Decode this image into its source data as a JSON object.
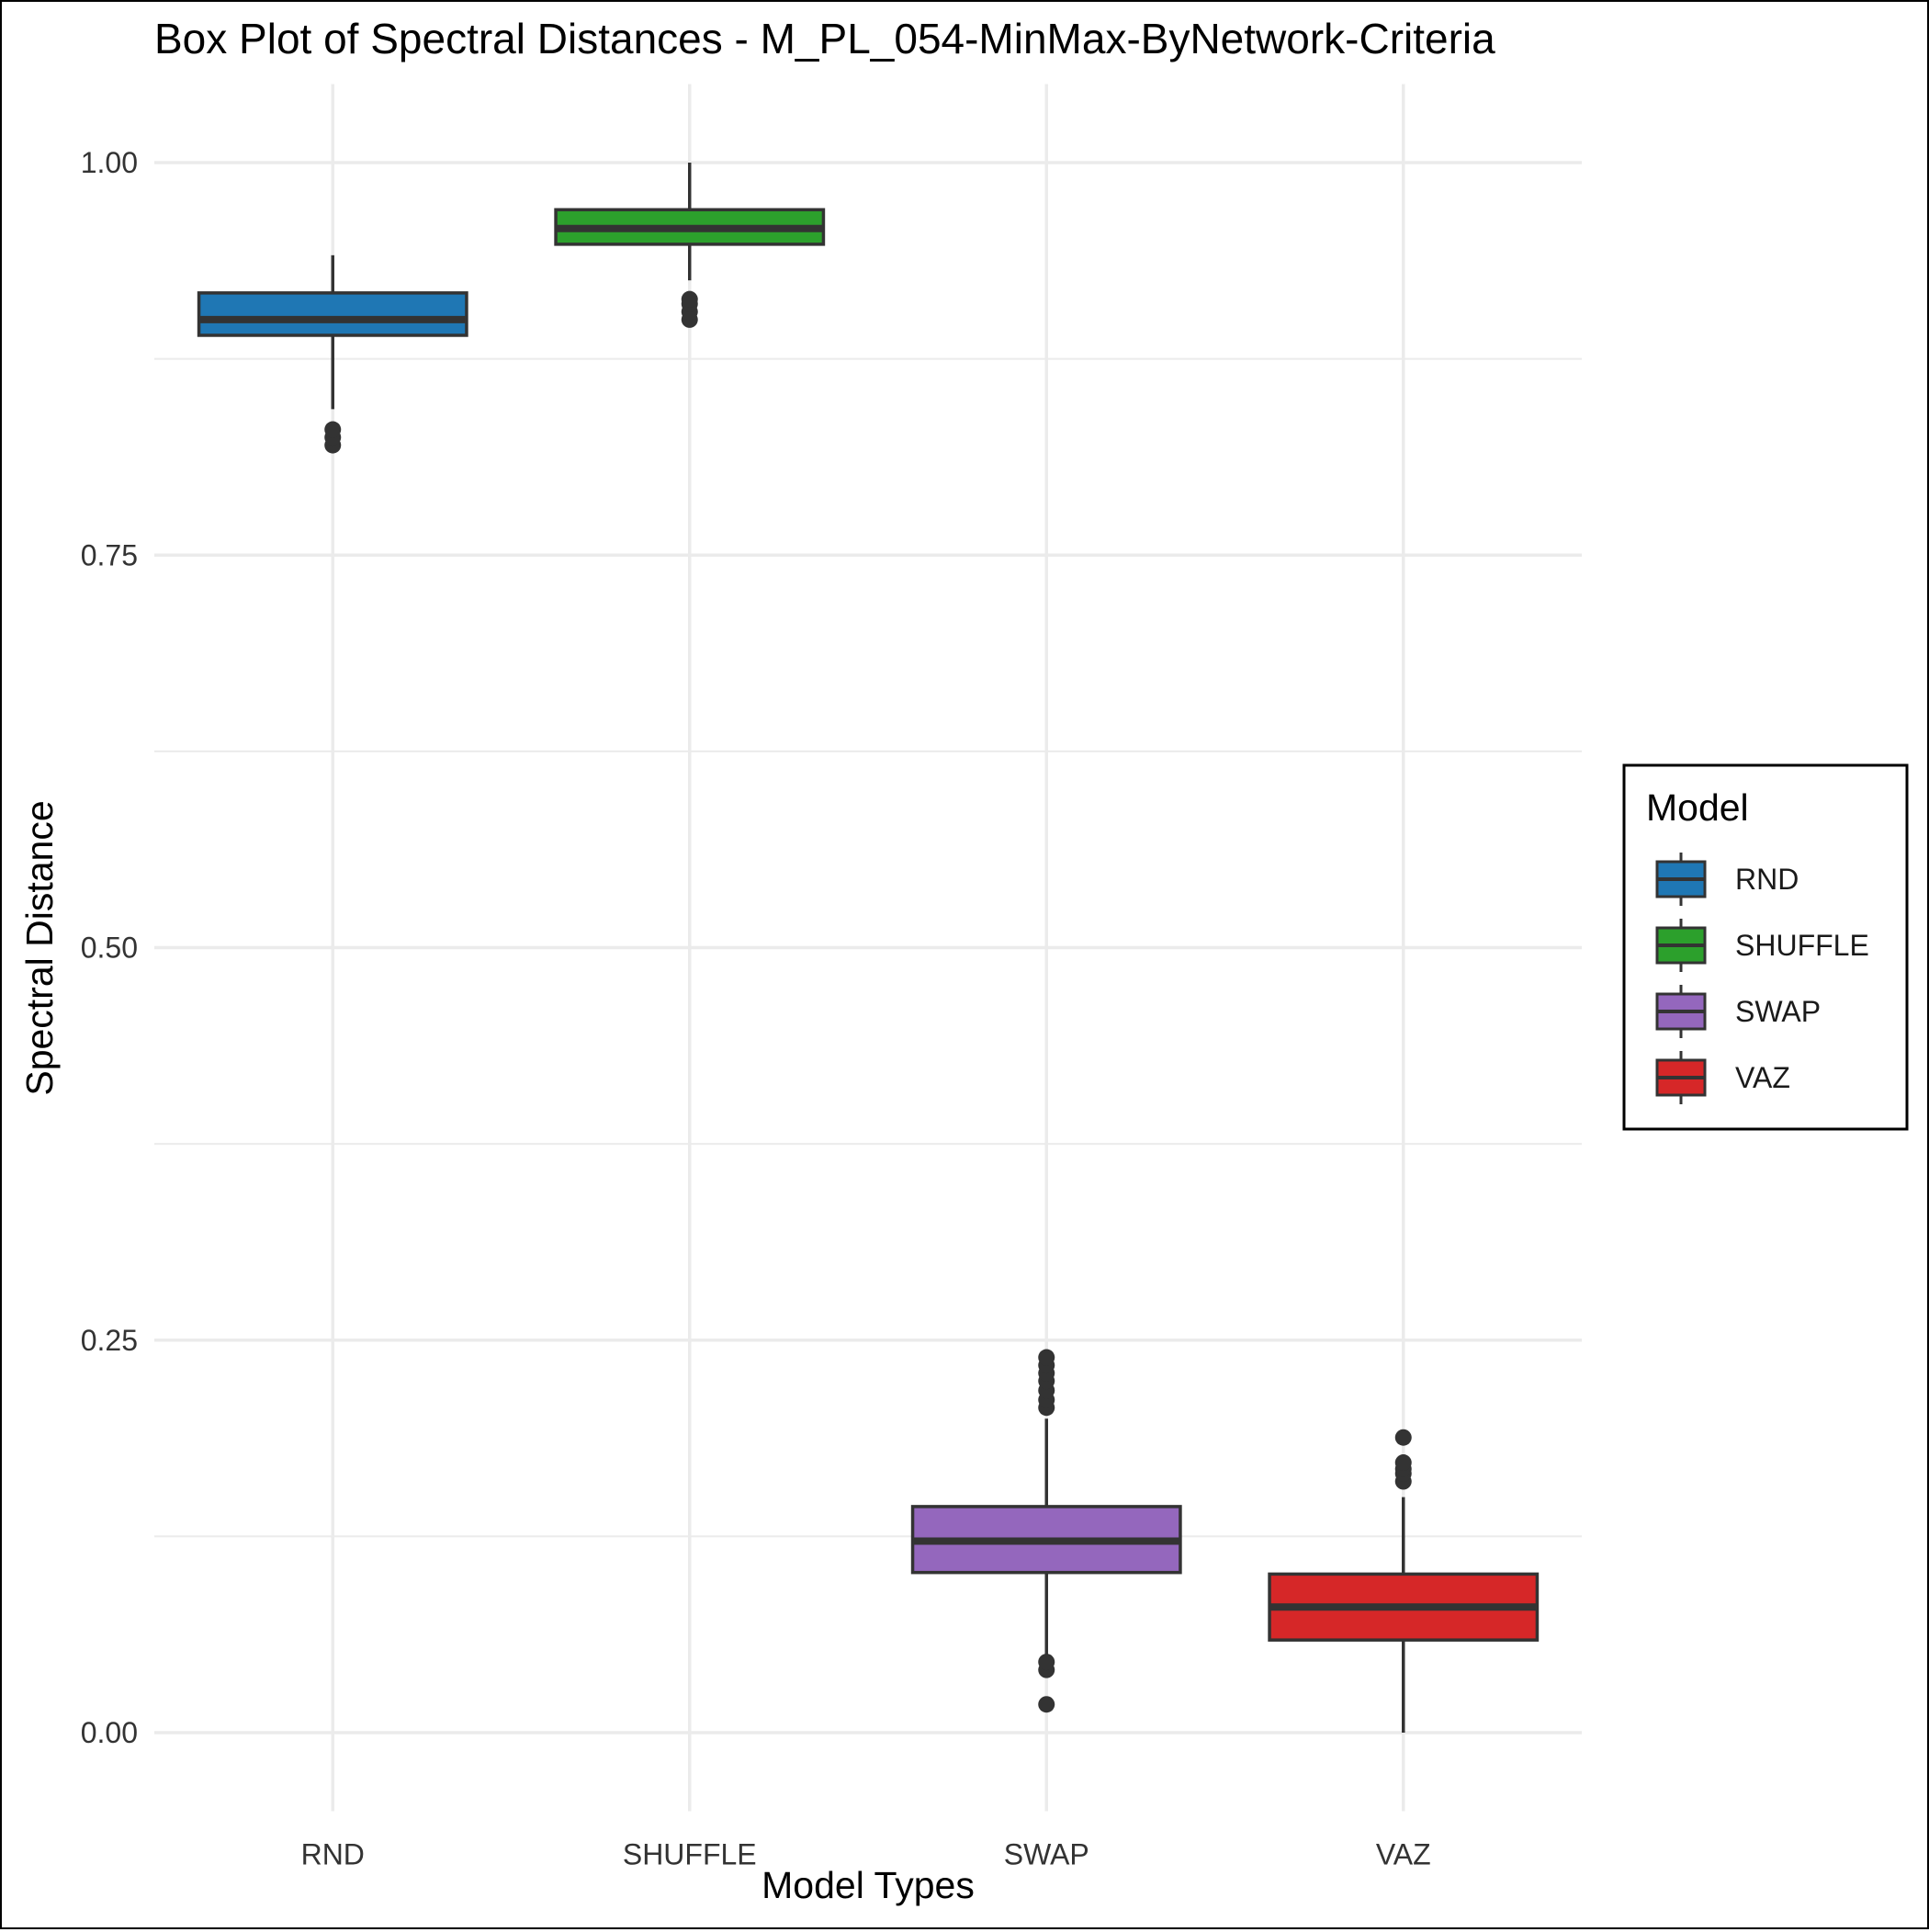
{
  "chart_data": {
    "type": "box",
    "title": "Box Plot of Spectral Distances -  M_PL_054-MinMax-ByNetwork-Criteria",
    "xlabel": "Model Types",
    "ylabel": "Spectral Distance",
    "ylim": [
      -0.05,
      1.05
    ],
    "yticks": [
      0.0,
      0.25,
      0.5,
      0.75,
      1.0
    ],
    "ytick_labels": [
      "0.00",
      "0.25",
      "0.50",
      "0.75",
      "1.00"
    ],
    "grid": true,
    "categories": [
      "RND",
      "SHUFFLE",
      "SWAP",
      "VAZ"
    ],
    "boxes": [
      {
        "name": "RND",
        "color": "#1f77b4",
        "whisker_low": 0.843,
        "q1": 0.89,
        "median": 0.9,
        "q3": 0.917,
        "whisker_high": 0.941,
        "outliers": [
          0.82,
          0.825,
          0.83
        ]
      },
      {
        "name": "SHUFFLE",
        "color": "#2ca02c",
        "whisker_low": 0.925,
        "q1": 0.948,
        "median": 0.958,
        "q3": 0.97,
        "whisker_high": 1.0,
        "outliers": [
          0.9,
          0.905,
          0.91,
          0.913
        ]
      },
      {
        "name": "SWAP",
        "color": "#9467bd",
        "whisker_low": 0.05,
        "q1": 0.102,
        "median": 0.122,
        "q3": 0.144,
        "whisker_high": 0.2,
        "outliers": [
          0.018,
          0.04,
          0.045,
          0.207,
          0.212,
          0.218,
          0.224,
          0.229,
          0.234,
          0.239
        ]
      },
      {
        "name": "VAZ",
        "color": "#d62728",
        "whisker_low": 0.0,
        "q1": 0.059,
        "median": 0.08,
        "q3": 0.101,
        "whisker_high": 0.15,
        "outliers": [
          0.16,
          0.165,
          0.168,
          0.172,
          0.188
        ]
      }
    ],
    "legend": {
      "title": "Model",
      "placement": "right",
      "entries": [
        "RND",
        "SHUFFLE",
        "SWAP",
        "VAZ"
      ]
    }
  }
}
